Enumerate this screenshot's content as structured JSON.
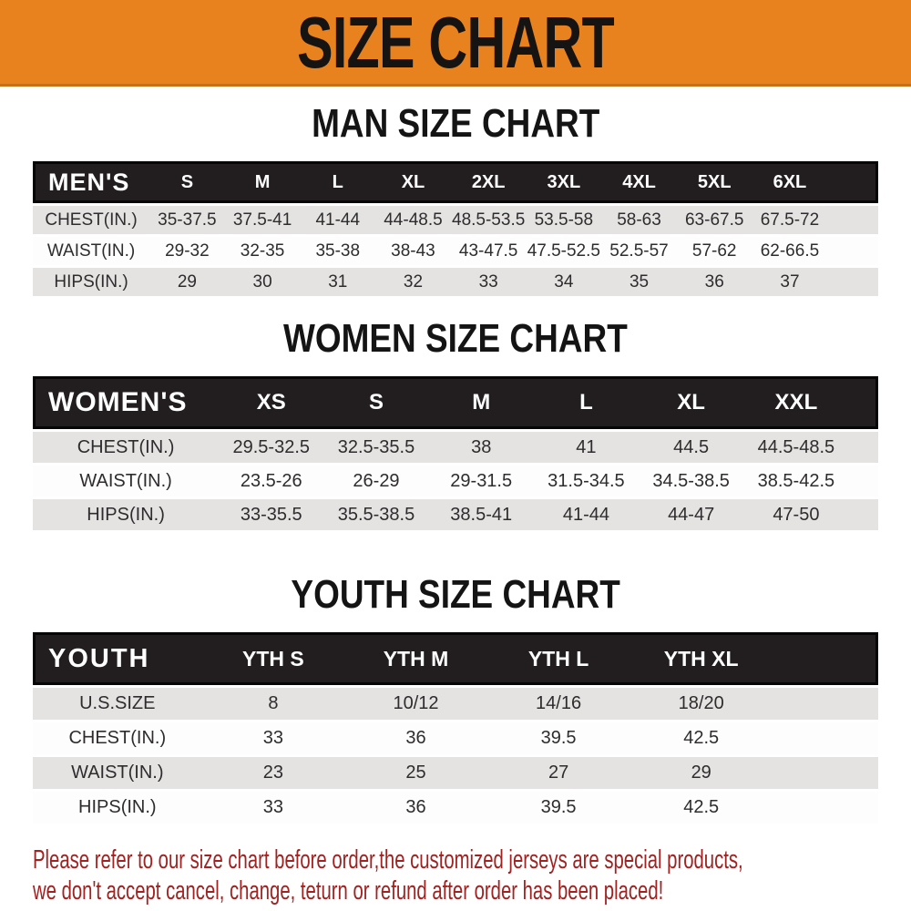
{
  "banner": {
    "title": "SIZE CHART"
  },
  "chart_data": [
    {
      "type": "table",
      "title": "MAN SIZE CHART",
      "header_label": "MEN'S",
      "columns": [
        "S",
        "M",
        "L",
        "XL",
        "2XL",
        "3XL",
        "4XL",
        "5XL",
        "6XL"
      ],
      "rows": [
        {
          "label": "CHEST(IN.)",
          "values": [
            "35-37.5",
            "37.5-41",
            "41-44",
            "44-48.5",
            "48.5-53.5",
            "53.5-58",
            "58-63",
            "63-67.5",
            "67.5-72"
          ]
        },
        {
          "label": "WAIST(IN.)",
          "values": [
            "29-32",
            "32-35",
            "35-38",
            "38-43",
            "43-47.5",
            "47.5-52.5",
            "52.5-57",
            "57-62",
            "62-66.5"
          ]
        },
        {
          "label": "HIPS(IN.)",
          "values": [
            "29",
            "30",
            "31",
            "32",
            "33",
            "34",
            "35",
            "36",
            "37"
          ]
        }
      ]
    },
    {
      "type": "table",
      "title": "WOMEN SIZE CHART",
      "header_label": "WOMEN'S",
      "columns": [
        "XS",
        "S",
        "M",
        "L",
        "XL",
        "XXL"
      ],
      "rows": [
        {
          "label": "CHEST(IN.)",
          "values": [
            "29.5-32.5",
            "32.5-35.5",
            "38",
            "41",
            "44.5",
            "44.5-48.5"
          ]
        },
        {
          "label": "WAIST(IN.)",
          "values": [
            "23.5-26",
            "26-29",
            "29-31.5",
            "31.5-34.5",
            "34.5-38.5",
            "38.5-42.5"
          ]
        },
        {
          "label": "HIPS(IN.)",
          "values": [
            "33-35.5",
            "35.5-38.5",
            "38.5-41",
            "41-44",
            "44-47",
            "47-50"
          ]
        }
      ]
    },
    {
      "type": "table",
      "title": "YOUTH SIZE CHART",
      "header_label": "YOUTH",
      "columns": [
        "YTH S",
        "YTH M",
        "YTH L",
        "YTH XL"
      ],
      "rows": [
        {
          "label": "U.S.SIZE",
          "values": [
            "8",
            "10/12",
            "14/16",
            "18/20"
          ]
        },
        {
          "label": "CHEST(IN.)",
          "values": [
            "33",
            "36",
            "39.5",
            "42.5"
          ]
        },
        {
          "label": "WAIST(IN.)",
          "values": [
            "23",
            "25",
            "27",
            "29"
          ]
        },
        {
          "label": "HIPS(IN.)",
          "values": [
            "33",
            "36",
            "39.5",
            "42.5"
          ]
        }
      ]
    }
  ],
  "footer": {
    "line1": "Please refer to our size chart before order,the customized jerseys are special products,",
    "line2": "we don't accept cancel, change, teturn or refund after order has been placed!"
  },
  "colors": {
    "banner_orange": "#e8821e",
    "banner_edge": "#c96f15",
    "header_fill": "#221e1f",
    "header_frame": "#070606",
    "row_gray": "#e4e3e2",
    "cell_text": "#2e2c2d",
    "heading_black": "#141414",
    "footer_red": "#a02221"
  }
}
